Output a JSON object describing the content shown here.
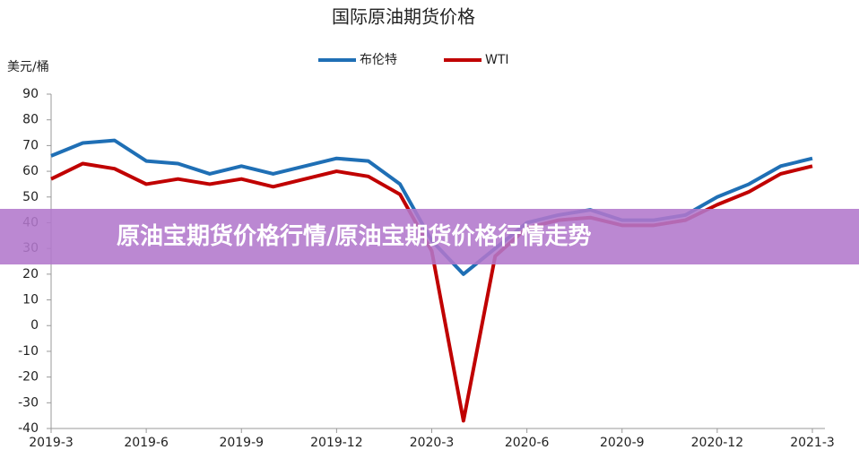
{
  "chart_data": {
    "type": "line",
    "title": "国际原油期货价格",
    "y_label": "美元/桶",
    "x": [
      "2019-3",
      null,
      null,
      "2019-6",
      null,
      null,
      "2019-9",
      null,
      null,
      "2019-12",
      null,
      null,
      "2020-3",
      null,
      null,
      "2020-6",
      null,
      null,
      "2020-9",
      null,
      null,
      "2020-12",
      null,
      null,
      "2021-3"
    ],
    "series": [
      {
        "name": "布伦特",
        "color": "#1f6fb5",
        "values": [
          66,
          71,
          72,
          64,
          63,
          59,
          62,
          59,
          62,
          65,
          64,
          55,
          33,
          20,
          30,
          40,
          43,
          45,
          41,
          41,
          43,
          50,
          55,
          62,
          65
        ]
      },
      {
        "name": "WTI",
        "color": "#c00000",
        "values": [
          57,
          63,
          61,
          55,
          57,
          55,
          57,
          54,
          57,
          60,
          58,
          51,
          29,
          -37,
          27,
          38,
          41,
          42,
          39,
          39,
          41,
          47,
          52,
          59,
          62
        ]
      }
    ],
    "ylim": [
      -40,
      90
    ],
    "yticks": [
      -40,
      -30,
      -20,
      -10,
      0,
      10,
      20,
      30,
      40,
      50,
      60,
      70,
      80,
      90
    ],
    "grid": false,
    "legend": "top"
  },
  "banner": "原油宝期货价格行情/原油宝期货价格行情走势"
}
